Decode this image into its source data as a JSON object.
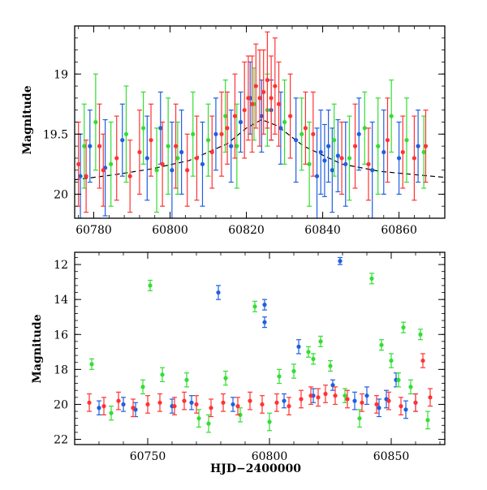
{
  "chart_data": [
    {
      "type": "scatter",
      "title": "",
      "xlabel": "",
      "ylabel": "Magnitude",
      "xlim": [
        60775,
        60872
      ],
      "ylim": [
        20.2,
        18.6
      ],
      "y_inverted": true,
      "xticks": [
        60780,
        60800,
        60820,
        60840,
        60860
      ],
      "yticks": [
        19,
        19.5,
        20
      ],
      "ytick_labels": [
        "19",
        "19.5",
        "20"
      ],
      "grid": false,
      "legend": "none",
      "colors": {
        "blue": "#1f5fe0",
        "green": "#33dd33",
        "red": "#ff3333",
        "curve": "#000000"
      },
      "model_curve": {
        "style": "dashed",
        "x": [
          60775,
          60785,
          60795,
          60805,
          60815,
          60820,
          60824,
          60828,
          60835,
          60845,
          60855,
          60865,
          60872
        ],
        "y": [
          19.88,
          19.84,
          19.79,
          19.72,
          19.58,
          19.45,
          19.38,
          19.43,
          19.6,
          19.75,
          19.81,
          19.84,
          19.86
        ]
      },
      "series": [
        {
          "color": "blue",
          "x": [
            60776.5,
            60779.0,
            60783.0,
            60787.5,
            60794.0,
            60797.5,
            60800.5,
            60803.0,
            60808.5,
            60812.0,
            60816.0,
            60818.5,
            60821.0,
            60824.0,
            60826.5,
            60829.0,
            60833.0,
            60838.5,
            60839.5,
            60840.5,
            60841.5,
            60842.5,
            60844.0,
            60846.0,
            60849.5,
            60853.0,
            60856.0,
            60860.0,
            60865.0
          ],
          "y": [
            19.85,
            19.6,
            19.78,
            19.55,
            19.7,
            19.45,
            19.8,
            19.65,
            19.75,
            19.5,
            19.6,
            19.4,
            19.2,
            19.35,
            19.3,
            19.45,
            19.55,
            19.85,
            19.65,
            19.72,
            19.6,
            19.8,
            19.68,
            19.75,
            19.5,
            19.8,
            19.65,
            19.7,
            19.6
          ],
          "yerr": [
            0.35,
            0.3,
            0.4,
            0.3,
            0.35,
            0.3,
            0.4,
            0.35,
            0.35,
            0.3,
            0.3,
            0.25,
            0.3,
            0.3,
            0.25,
            0.3,
            0.35,
            0.4,
            0.35,
            0.3,
            0.3,
            0.35,
            0.3,
            0.35,
            0.3,
            0.4,
            0.35,
            0.3,
            0.3
          ]
        },
        {
          "color": "green",
          "x": [
            60777.5,
            60780.5,
            60784.5,
            60788.5,
            60793.0,
            60796.5,
            60799.5,
            60802.0,
            60806.0,
            60810.0,
            60814.5,
            60817.5,
            60822.0,
            60825.5,
            60830.0,
            60834.5,
            60836.5,
            60843.0,
            60847.0,
            60851.0,
            60854.5,
            60858.0,
            60862.0,
            60866.5
          ],
          "y": [
            19.6,
            19.4,
            19.75,
            19.5,
            19.45,
            19.8,
            19.6,
            19.7,
            19.5,
            19.55,
            19.35,
            19.6,
            19.25,
            19.3,
            19.4,
            19.5,
            19.75,
            19.55,
            19.7,
            19.45,
            19.6,
            19.35,
            19.55,
            19.65
          ],
          "yerr": [
            0.35,
            0.4,
            0.35,
            0.4,
            0.3,
            0.35,
            0.4,
            0.3,
            0.35,
            0.3,
            0.3,
            0.35,
            0.3,
            0.3,
            0.35,
            0.3,
            0.35,
            0.3,
            0.35,
            0.3,
            0.4,
            0.3,
            0.35,
            0.3
          ]
        },
        {
          "color": "red",
          "x": [
            60776.0,
            60778.0,
            60781.5,
            60782.5,
            60786.0,
            60789.5,
            60792.0,
            60795.0,
            60798.0,
            60801.5,
            60804.5,
            60807.0,
            60811.0,
            60813.5,
            60815.0,
            60817.0,
            60819.5,
            60820.5,
            60821.5,
            60822.5,
            60823.5,
            60824.5,
            60825.5,
            60826.5,
            60827.5,
            60828.5,
            60831.5,
            60835.5,
            60837.5,
            60845.0,
            60848.5,
            60852.0,
            60857.0,
            60861.0,
            60864.0,
            60867.0
          ],
          "y": [
            19.75,
            19.85,
            19.6,
            19.8,
            19.7,
            19.85,
            19.65,
            19.55,
            19.75,
            19.6,
            19.8,
            19.7,
            19.65,
            19.5,
            19.45,
            19.35,
            19.3,
            19.2,
            19.25,
            19.1,
            19.2,
            19.15,
            19.05,
            19.2,
            19.1,
            19.25,
            19.35,
            19.45,
            19.5,
            19.7,
            19.6,
            19.75,
            19.55,
            19.65,
            19.7,
            19.6
          ],
          "yerr": [
            0.35,
            0.3,
            0.35,
            0.3,
            0.35,
            0.3,
            0.35,
            0.3,
            0.35,
            0.35,
            0.3,
            0.35,
            0.3,
            0.35,
            0.3,
            0.35,
            0.4,
            0.35,
            0.4,
            0.35,
            0.4,
            0.35,
            0.4,
            0.35,
            0.4,
            0.35,
            0.35,
            0.3,
            0.35,
            0.3,
            0.35,
            0.3,
            0.35,
            0.3,
            0.35,
            0.3
          ]
        }
      ]
    },
    {
      "type": "scatter",
      "title": "",
      "xlabel": "HJD−2400000",
      "ylabel": "Magnitude",
      "xlim": [
        60720,
        60872
      ],
      "ylim": [
        22.3,
        11.3
      ],
      "y_inverted": true,
      "xticks": [
        60750,
        60800,
        60850
      ],
      "yticks": [
        12,
        14,
        16,
        18,
        20,
        22
      ],
      "ytick_labels": [
        "12",
        "14",
        "16",
        "18",
        "20",
        "22"
      ],
      "grid": false,
      "legend": "none",
      "colors": {
        "blue": "#1f5fe0",
        "green": "#33dd33",
        "red": "#ff3333"
      },
      "series": [
        {
          "color": "blue",
          "x": [
            60730,
            60740,
            60745,
            60760,
            60768,
            60779,
            60785,
            60798,
            60798,
            60806,
            60812,
            60818,
            60826,
            60829,
            60835,
            60840,
            60845,
            60848,
            60852,
            60856,
            60860
          ],
          "y": [
            20.2,
            20.0,
            20.3,
            20.1,
            19.9,
            13.6,
            20.0,
            14.3,
            15.3,
            19.8,
            16.7,
            19.5,
            18.9,
            11.8,
            19.8,
            19.5,
            20.2,
            19.7,
            18.6,
            20.3,
            19.9
          ],
          "yerr": [
            0.4,
            0.4,
            0.4,
            0.4,
            0.4,
            0.4,
            0.4,
            0.3,
            0.3,
            0.4,
            0.4,
            0.4,
            0.3,
            0.2,
            0.5,
            0.5,
            0.5,
            0.5,
            0.4,
            0.5,
            0.5
          ]
        },
        {
          "color": "green",
          "x": [
            60727,
            60735,
            60748,
            60751,
            60756,
            60766,
            60771,
            60775,
            60782,
            60788,
            60794,
            60800,
            60804,
            60810,
            60816,
            60818,
            60821,
            60825,
            60831,
            60837,
            60842,
            60846,
            60850,
            60853,
            60855,
            60858,
            60862,
            60865
          ],
          "y": [
            17.7,
            20.5,
            19.0,
            13.2,
            18.3,
            18.6,
            20.8,
            21.1,
            18.5,
            20.6,
            14.4,
            21.0,
            18.4,
            18.1,
            17.0,
            17.4,
            16.4,
            17.8,
            19.5,
            20.8,
            12.8,
            16.6,
            17.5,
            18.6,
            15.6,
            19.0,
            16.0,
            20.9
          ],
          "yerr": [
            0.3,
            0.4,
            0.4,
            0.3,
            0.4,
            0.4,
            0.5,
            0.5,
            0.4,
            0.4,
            0.3,
            0.5,
            0.4,
            0.4,
            0.3,
            0.3,
            0.3,
            0.3,
            0.4,
            0.5,
            0.3,
            0.3,
            0.4,
            0.4,
            0.3,
            0.4,
            0.3,
            0.5
          ]
        },
        {
          "color": "red",
          "x": [
            60726,
            60732,
            60738,
            60744,
            60750,
            60755,
            60761,
            60765,
            60770,
            60776,
            60781,
            60787,
            60792,
            60797,
            60803,
            60808,
            60813,
            60817,
            60820,
            60823,
            60827,
            60832,
            60838,
            60844,
            60849,
            60854,
            60860,
            60863,
            60866
          ],
          "y": [
            19.9,
            20.1,
            19.8,
            20.2,
            20.0,
            19.9,
            20.1,
            19.8,
            20.0,
            20.2,
            19.9,
            20.1,
            19.8,
            20.0,
            19.9,
            20.1,
            19.7,
            19.5,
            19.6,
            19.4,
            19.5,
            19.7,
            19.9,
            20.0,
            19.8,
            20.1,
            19.9,
            17.5,
            19.6
          ],
          "yerr": [
            0.5,
            0.5,
            0.5,
            0.5,
            0.5,
            0.5,
            0.5,
            0.5,
            0.5,
            0.5,
            0.5,
            0.5,
            0.5,
            0.5,
            0.5,
            0.5,
            0.5,
            0.5,
            0.5,
            0.5,
            0.5,
            0.5,
            0.5,
            0.5,
            0.5,
            0.5,
            0.5,
            0.4,
            0.5
          ]
        }
      ]
    }
  ]
}
